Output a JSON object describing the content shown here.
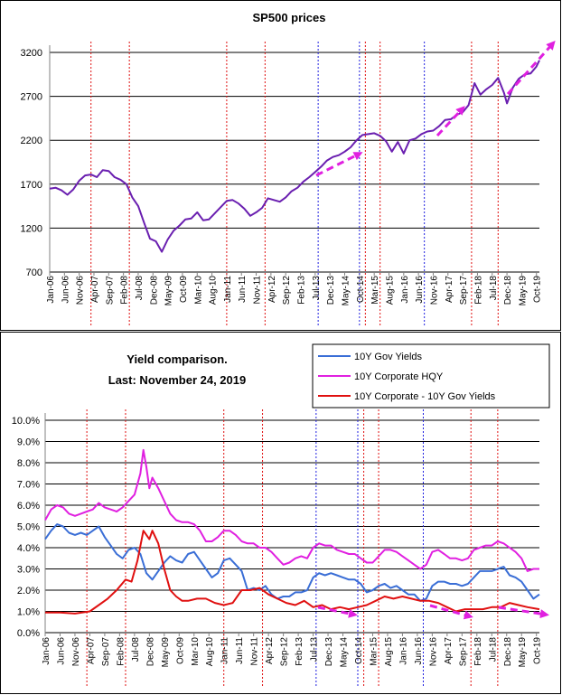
{
  "chart_data": [
    {
      "type": "line",
      "title": "SP500 prices",
      "xlabel": "",
      "ylabel": "",
      "ylim": [
        700,
        3200
      ],
      "yticks": [
        "3200",
        "2700",
        "2200",
        "1700",
        "1200",
        "700"
      ],
      "grid": "horizontal",
      "x_range": [
        "2006-01",
        "2019-11"
      ],
      "tick_labels": [
        "Jan-06",
        "Jun-06",
        "Nov-06",
        "Apr-07",
        "Sep-07",
        "Feb-08",
        "Jul-08",
        "Dec-08",
        "May-09",
        "Oct-09",
        "Mar-10",
        "Aug-10",
        "Jan-11",
        "Jun-11",
        "Nov-11",
        "Apr-12",
        "Sep-12",
        "Feb-13",
        "Jul-13",
        "Dec-13",
        "May-14",
        "Oct-14",
        "Mar-15",
        "Aug-15",
        "Jan-16",
        "Jun-16",
        "Nov-16",
        "Apr-17",
        "Sep-17",
        "Feb-18",
        "Jul-18",
        "Dec-18",
        "May-19",
        "Oct-19"
      ],
      "series": [
        {
          "color": "#6a1fb0",
          "x": [
            "2006-01",
            "2006-03",
            "2006-05",
            "2006-07",
            "2006-09",
            "2006-11",
            "2007-01",
            "2007-03",
            "2007-05",
            "2007-07",
            "2007-09",
            "2007-11",
            "2008-01",
            "2008-03",
            "2008-05",
            "2008-07",
            "2008-09",
            "2008-11",
            "2009-01",
            "2009-03",
            "2009-05",
            "2009-07",
            "2009-09",
            "2009-11",
            "2010-01",
            "2010-03",
            "2010-05",
            "2010-07",
            "2010-09",
            "2010-11",
            "2011-01",
            "2011-03",
            "2011-05",
            "2011-07",
            "2011-09",
            "2011-11",
            "2012-01",
            "2012-03",
            "2012-05",
            "2012-07",
            "2012-09",
            "2012-11",
            "2013-01",
            "2013-03",
            "2013-05",
            "2013-07",
            "2013-09",
            "2013-11",
            "2014-01",
            "2014-03",
            "2014-05",
            "2014-07",
            "2014-09",
            "2014-11",
            "2015-01",
            "2015-03",
            "2015-05",
            "2015-07",
            "2015-09",
            "2015-11",
            "2016-01",
            "2016-03",
            "2016-05",
            "2016-07",
            "2016-09",
            "2016-11",
            "2017-01",
            "2017-03",
            "2017-05",
            "2017-07",
            "2017-09",
            "2017-11",
            "2018-01",
            "2018-03",
            "2018-05",
            "2018-07",
            "2018-09",
            "2018-11",
            "2018-12",
            "2019-02",
            "2019-04",
            "2019-06",
            "2019-08",
            "2019-10",
            "2019-11"
          ],
          "values": [
            1650,
            1660,
            1630,
            1580,
            1640,
            1740,
            1800,
            1810,
            1780,
            1860,
            1850,
            1780,
            1750,
            1700,
            1550,
            1450,
            1260,
            1080,
            1050,
            930,
            1070,
            1170,
            1230,
            1300,
            1310,
            1380,
            1290,
            1300,
            1370,
            1440,
            1510,
            1520,
            1480,
            1420,
            1340,
            1380,
            1430,
            1540,
            1520,
            1500,
            1550,
            1620,
            1660,
            1730,
            1780,
            1840,
            1900,
            1970,
            2010,
            2030,
            2070,
            2120,
            2200,
            2260,
            2270,
            2280,
            2250,
            2190,
            2070,
            2180,
            2050,
            2200,
            2220,
            2270,
            2300,
            2310,
            2360,
            2430,
            2440,
            2490,
            2520,
            2600,
            2850,
            2720,
            2780,
            2830,
            2910,
            2740,
            2620,
            2800,
            2900,
            2950,
            2960,
            3040,
            3110
          ]
        }
      ],
      "vlines_red": [
        "2007-03",
        "2008-04",
        "2011-01",
        "2012-02",
        "2014-12",
        "2015-05",
        "2017-12",
        "2018-09"
      ],
      "vlines_blue": [
        "2013-08",
        "2014-10",
        "2016-08"
      ],
      "annotations": [
        "magenta dashed arrows pointing up-right"
      ]
    },
    {
      "type": "line",
      "title": "Yield comparison.\nLast: November 24, 2019",
      "title_lines": [
        "Yield comparison.",
        "Last: November 24, 2019"
      ],
      "xlabel": "",
      "ylabel": "",
      "ylim": [
        0,
        10
      ],
      "yticks": [
        "10.0%",
        "9.0%",
        "8.0%",
        "7.0%",
        "6.0%",
        "5.0%",
        "4.0%",
        "3.0%",
        "2.0%",
        "1.0%",
        "0.0%"
      ],
      "grid": "horizontal",
      "legend_position": "top-right",
      "x_range": [
        "2006-01",
        "2019-11"
      ],
      "tick_labels": [
        "Jan-06",
        "Jun-06",
        "Nov-06",
        "Apr-07",
        "Sep-07",
        "Feb-08",
        "Jul-08",
        "Dec-08",
        "May-09",
        "Oct-09",
        "Mar-10",
        "Aug-10",
        "Jan-11",
        "Jun-11",
        "Nov-11",
        "Apr-12",
        "Sep-12",
        "Feb-13",
        "Jul-13",
        "Dec-13",
        "May-14",
        "Oct-14",
        "Mar-15",
        "Aug-15",
        "Jan-16",
        "Jun-16",
        "Nov-16",
        "Apr-17",
        "Sep-17",
        "Feb-18",
        "Jul-18",
        "Dec-18",
        "May-19",
        "Oct-19"
      ],
      "series": [
        {
          "name": "10Y Gov Yields",
          "color": "#3a6ed6",
          "x": [
            "2006-01",
            "2006-03",
            "2006-05",
            "2006-07",
            "2006-09",
            "2006-11",
            "2007-01",
            "2007-03",
            "2007-05",
            "2007-07",
            "2007-09",
            "2007-11",
            "2008-01",
            "2008-03",
            "2008-05",
            "2008-07",
            "2008-09",
            "2008-11",
            "2009-01",
            "2009-03",
            "2009-05",
            "2009-07",
            "2009-09",
            "2009-11",
            "2010-01",
            "2010-03",
            "2010-05",
            "2010-07",
            "2010-09",
            "2010-11",
            "2011-01",
            "2011-03",
            "2011-05",
            "2011-07",
            "2011-09",
            "2011-11",
            "2012-01",
            "2012-03",
            "2012-05",
            "2012-07",
            "2012-09",
            "2012-11",
            "2013-01",
            "2013-03",
            "2013-05",
            "2013-07",
            "2013-09",
            "2013-11",
            "2014-01",
            "2014-03",
            "2014-05",
            "2014-07",
            "2014-09",
            "2014-11",
            "2015-01",
            "2015-03",
            "2015-05",
            "2015-07",
            "2015-09",
            "2015-11",
            "2016-01",
            "2016-03",
            "2016-05",
            "2016-07",
            "2016-09",
            "2016-11",
            "2017-01",
            "2017-03",
            "2017-05",
            "2017-07",
            "2017-09",
            "2017-11",
            "2018-01",
            "2018-03",
            "2018-05",
            "2018-07",
            "2018-09",
            "2018-11",
            "2019-01",
            "2019-03",
            "2019-05",
            "2019-07",
            "2019-09",
            "2019-11"
          ],
          "values": [
            4.4,
            4.8,
            5.1,
            5.0,
            4.7,
            4.6,
            4.7,
            4.6,
            4.8,
            5.0,
            4.5,
            4.1,
            3.7,
            3.5,
            3.9,
            4.0,
            3.7,
            2.8,
            2.5,
            2.9,
            3.3,
            3.6,
            3.4,
            3.3,
            3.7,
            3.8,
            3.4,
            3.0,
            2.6,
            2.8,
            3.4,
            3.5,
            3.2,
            2.9,
            2.0,
            2.1,
            2.0,
            2.2,
            1.8,
            1.6,
            1.7,
            1.7,
            1.9,
            1.9,
            2.0,
            2.6,
            2.8,
            2.7,
            2.8,
            2.7,
            2.6,
            2.5,
            2.5,
            2.3,
            1.9,
            2.0,
            2.2,
            2.3,
            2.1,
            2.2,
            2.0,
            1.8,
            1.8,
            1.5,
            1.6,
            2.2,
            2.4,
            2.4,
            2.3,
            2.3,
            2.2,
            2.3,
            2.6,
            2.9,
            2.9,
            2.9,
            3.0,
            3.1,
            2.7,
            2.6,
            2.4,
            2.0,
            1.6,
            1.8
          ]
        },
        {
          "name": "10Y Corporate HQY",
          "color": "#e020e0",
          "x": [
            "2006-01",
            "2006-03",
            "2006-05",
            "2006-07",
            "2006-09",
            "2006-11",
            "2007-01",
            "2007-03",
            "2007-05",
            "2007-07",
            "2007-09",
            "2007-11",
            "2008-01",
            "2008-03",
            "2008-05",
            "2008-07",
            "2008-09",
            "2008-10",
            "2008-11",
            "2008-12",
            "2009-01",
            "2009-03",
            "2009-05",
            "2009-07",
            "2009-09",
            "2009-11",
            "2010-01",
            "2010-03",
            "2010-05",
            "2010-07",
            "2010-09",
            "2010-11",
            "2011-01",
            "2011-03",
            "2011-05",
            "2011-07",
            "2011-09",
            "2011-11",
            "2012-01",
            "2012-03",
            "2012-05",
            "2012-07",
            "2012-09",
            "2012-11",
            "2013-01",
            "2013-03",
            "2013-05",
            "2013-07",
            "2013-09",
            "2013-11",
            "2014-01",
            "2014-03",
            "2014-05",
            "2014-07",
            "2014-09",
            "2014-11",
            "2015-01",
            "2015-03",
            "2015-05",
            "2015-07",
            "2015-09",
            "2015-11",
            "2016-01",
            "2016-03",
            "2016-05",
            "2016-07",
            "2016-09",
            "2016-11",
            "2017-01",
            "2017-03",
            "2017-05",
            "2017-07",
            "2017-09",
            "2017-11",
            "2018-01",
            "2018-03",
            "2018-05",
            "2018-07",
            "2018-09",
            "2018-11",
            "2019-01",
            "2019-03",
            "2019-05",
            "2019-07",
            "2019-09",
            "2019-11"
          ],
          "values": [
            5.3,
            5.8,
            6.0,
            5.9,
            5.6,
            5.5,
            5.6,
            5.7,
            5.8,
            6.1,
            5.9,
            5.8,
            5.7,
            5.9,
            6.2,
            6.5,
            7.5,
            8.6,
            7.8,
            6.8,
            7.3,
            6.8,
            6.2,
            5.6,
            5.3,
            5.2,
            5.2,
            5.1,
            4.8,
            4.3,
            4.3,
            4.5,
            4.8,
            4.8,
            4.6,
            4.3,
            4.2,
            4.2,
            4.0,
            4.0,
            3.8,
            3.5,
            3.2,
            3.3,
            3.5,
            3.6,
            3.5,
            4.0,
            4.2,
            4.1,
            4.1,
            3.9,
            3.8,
            3.7,
            3.7,
            3.5,
            3.3,
            3.3,
            3.6,
            3.9,
            3.9,
            3.8,
            3.6,
            3.4,
            3.2,
            3.0,
            3.2,
            3.8,
            3.9,
            3.7,
            3.5,
            3.5,
            3.4,
            3.5,
            3.9,
            4.0,
            4.1,
            4.1,
            4.3,
            4.2,
            4.0,
            3.8,
            3.5,
            2.9,
            3.0,
            3.0
          ]
        },
        {
          "name": "10Y Corporate - 10Y Gov Yields",
          "color": "#e01010",
          "x": [
            "2006-01",
            "2006-06",
            "2006-11",
            "2007-04",
            "2007-07",
            "2007-10",
            "2008-01",
            "2008-04",
            "2008-06",
            "2008-08",
            "2008-10",
            "2008-12",
            "2009-01",
            "2009-03",
            "2009-05",
            "2009-07",
            "2009-09",
            "2009-11",
            "2010-01",
            "2010-04",
            "2010-07",
            "2010-10",
            "2011-01",
            "2011-04",
            "2011-07",
            "2011-10",
            "2012-01",
            "2012-04",
            "2012-07",
            "2012-10",
            "2013-01",
            "2013-04",
            "2013-07",
            "2013-10",
            "2014-01",
            "2014-04",
            "2014-07",
            "2014-10",
            "2015-01",
            "2015-04",
            "2015-07",
            "2015-10",
            "2016-01",
            "2016-04",
            "2016-07",
            "2016-10",
            "2017-01",
            "2017-04",
            "2017-07",
            "2017-10",
            "2018-01",
            "2018-04",
            "2018-07",
            "2018-10",
            "2019-01",
            "2019-04",
            "2019-07",
            "2019-11"
          ],
          "values": [
            0.95,
            0.95,
            0.9,
            1.0,
            1.3,
            1.6,
            2.0,
            2.5,
            2.4,
            3.4,
            4.8,
            4.4,
            4.8,
            4.2,
            3.0,
            2.0,
            1.7,
            1.5,
            1.5,
            1.6,
            1.6,
            1.4,
            1.3,
            1.4,
            2.0,
            2.0,
            2.1,
            1.8,
            1.6,
            1.4,
            1.3,
            1.5,
            1.2,
            1.3,
            1.1,
            1.2,
            1.1,
            1.2,
            1.3,
            1.5,
            1.7,
            1.6,
            1.7,
            1.6,
            1.5,
            1.5,
            1.4,
            1.2,
            1.0,
            1.1,
            1.1,
            1.1,
            1.2,
            1.2,
            1.4,
            1.3,
            1.2,
            1.1
          ]
        }
      ],
      "vlines_red": [
        "2007-03",
        "2008-04",
        "2011-01",
        "2012-02",
        "2014-12",
        "2015-05",
        "2017-12",
        "2018-09"
      ],
      "vlines_blue": [
        "2013-08",
        "2014-10",
        "2016-08"
      ],
      "annotations": [
        "magenta dashed arrows pointing down-right"
      ]
    }
  ]
}
